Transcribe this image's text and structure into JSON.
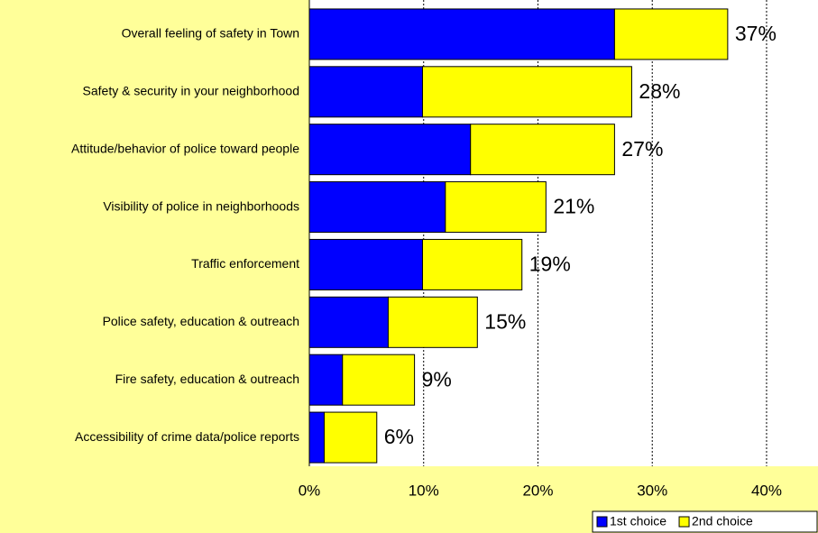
{
  "chart_data": {
    "type": "stacked-barh",
    "categories": [
      "Overall feeling of safety in Town",
      "Safety & security in your neighborhood",
      "Attitude/behavior of police toward people",
      "Visibility of police in neighborhoods",
      "Traffic enforcement",
      "Police safety, education & outreach",
      "Fire safety, education & outreach",
      "Accessibility of crime data/police reports"
    ],
    "series": [
      {
        "name": "1st choice",
        "color": "#0000ff",
        "values": [
          26.7,
          9.9,
          14.1,
          11.9,
          9.9,
          6.9,
          2.9,
          1.3
        ]
      },
      {
        "name": "2nd choice",
        "color": "#ffff00",
        "values": [
          9.9,
          18.3,
          12.6,
          8.8,
          8.7,
          7.8,
          6.3,
          4.6
        ]
      }
    ],
    "data_labels": [
      "37%",
      "28%",
      "27%",
      "21%",
      "19%",
      "15%",
      "9%",
      "6%"
    ],
    "xlim": [
      0,
      44.5
    ],
    "xticks": [
      {
        "value": 0,
        "label": "0%"
      },
      {
        "value": 10,
        "label": "10%"
      },
      {
        "value": 20,
        "label": "20%"
      },
      {
        "value": 30,
        "label": "30%"
      },
      {
        "value": 40,
        "label": "40%"
      }
    ],
    "grid": true,
    "legend": "bottom-right"
  }
}
